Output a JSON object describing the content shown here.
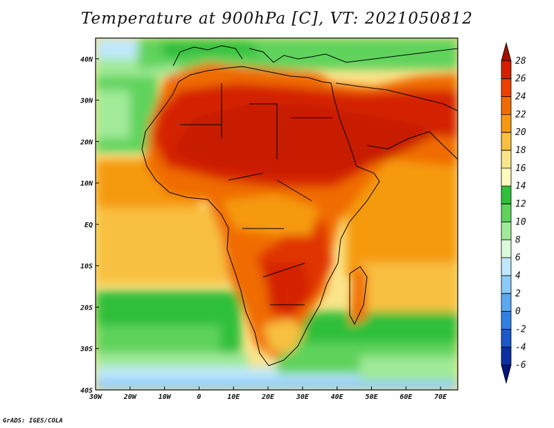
{
  "title": "Temperature at 900hPa [C], VT: 2021050812",
  "credit": "GrADS: IGES/COLA",
  "map": {
    "lon_range": [
      -30,
      75
    ],
    "lat_range": [
      -40,
      45
    ],
    "lon_ticks": [
      {
        "value": -30,
        "label": "30W"
      },
      {
        "value": -20,
        "label": "20W"
      },
      {
        "value": -10,
        "label": "10W"
      },
      {
        "value": 0,
        "label": "0"
      },
      {
        "value": 10,
        "label": "10E"
      },
      {
        "value": 20,
        "label": "20E"
      },
      {
        "value": 30,
        "label": "30E"
      },
      {
        "value": 40,
        "label": "40E"
      },
      {
        "value": 50,
        "label": "50E"
      },
      {
        "value": 60,
        "label": "60E"
      },
      {
        "value": 70,
        "label": "70E"
      }
    ],
    "lat_ticks": [
      {
        "value": 40,
        "label": "40N"
      },
      {
        "value": 30,
        "label": "30N"
      },
      {
        "value": 20,
        "label": "20N"
      },
      {
        "value": 10,
        "label": "10N"
      },
      {
        "value": 0,
        "label": "EQ"
      },
      {
        "value": -10,
        "label": "10S"
      },
      {
        "value": -20,
        "label": "20S"
      },
      {
        "value": -30,
        "label": "30S"
      },
      {
        "value": -40,
        "label": "40S"
      }
    ]
  },
  "colorbar": {
    "levels": [
      "28",
      "26",
      "24",
      "22",
      "20",
      "18",
      "16",
      "14",
      "12",
      "10",
      "8",
      "6",
      "4",
      "2",
      "0",
      "-2",
      "-4",
      "-6"
    ],
    "colors": [
      "#a01000",
      "#d42000",
      "#ec4000",
      "#f06c00",
      "#f59a10",
      "#f8c040",
      "#fbe58a",
      "#fefbbe",
      "#2fbf3a",
      "#5fd35c",
      "#a0ea98",
      "#dcfcdc",
      "#bfe8fc",
      "#8ccafa",
      "#5aa8f0",
      "#2f80e0",
      "#1a58cc",
      "#0a30a0",
      "#04147a"
    ]
  }
}
